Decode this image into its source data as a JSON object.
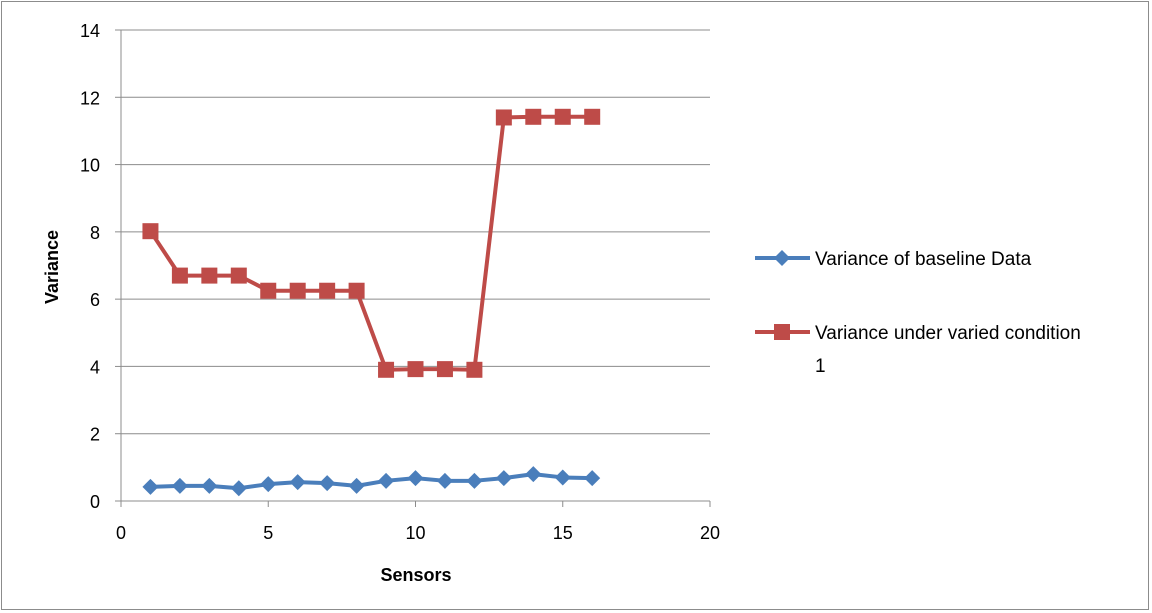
{
  "chart_data": {
    "type": "line",
    "title": "",
    "xlabel": "Sensors",
    "ylabel": "Variance",
    "xlim": [
      0,
      20
    ],
    "ylim": [
      0,
      14
    ],
    "xticks": [
      0,
      5,
      10,
      15,
      20
    ],
    "yticks": [
      0,
      2,
      4,
      6,
      8,
      10,
      12,
      14
    ],
    "x_tick_labels": [
      "0",
      "5",
      "10",
      "15",
      "20"
    ],
    "y_tick_labels": [
      "0",
      "2",
      "4",
      "6",
      "8",
      "10",
      "12",
      "14"
    ],
    "grid": "horizontal",
    "legend_position": "right",
    "series": [
      {
        "name": "Variance of baseline Data",
        "color": "#4a7ebb",
        "marker": "diamond",
        "x": [
          1,
          2,
          3,
          4,
          5,
          6,
          7,
          8,
          9,
          10,
          11,
          12,
          13,
          14,
          15,
          16
        ],
        "y": [
          0.42,
          0.45,
          0.45,
          0.38,
          0.5,
          0.56,
          0.53,
          0.45,
          0.6,
          0.68,
          0.6,
          0.6,
          0.68,
          0.8,
          0.7,
          0.68
        ]
      },
      {
        "name": "Variance under varied condition",
        "name_line2": "1",
        "color": "#be4b48",
        "marker": "square",
        "x": [
          1,
          2,
          3,
          4,
          5,
          6,
          7,
          8,
          9,
          10,
          11,
          12,
          13,
          14,
          15,
          16
        ],
        "y": [
          8.02,
          6.7,
          6.7,
          6.7,
          6.25,
          6.25,
          6.25,
          6.25,
          3.9,
          3.92,
          3.92,
          3.9,
          11.4,
          11.42,
          11.42,
          11.42
        ]
      }
    ]
  }
}
